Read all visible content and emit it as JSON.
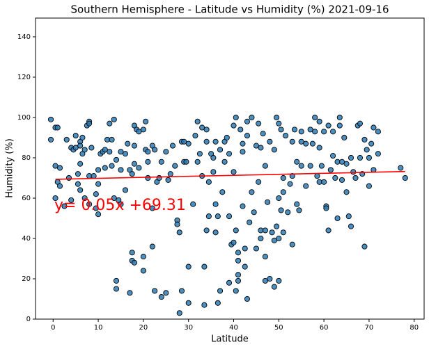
{
  "chart_data": {
    "type": "scatter",
    "title": "Southern Hemisphere - Latitude vs Humidity (%) 2021-09-16",
    "x_label": "Latitude",
    "y_label": "Humidity (%)",
    "xlim": [
      -3.9,
      82.2
    ],
    "ylim": [
      0,
      149.3
    ],
    "xticks": [
      0,
      10,
      20,
      30,
      40,
      50,
      60,
      70,
      80
    ],
    "yticks": [
      0,
      20,
      40,
      60,
      80,
      100,
      120,
      140
    ],
    "color": "#2b7bb5",
    "x": [
      -0.5,
      -0.5,
      0.5,
      1,
      0.5,
      1.5,
      0.5,
      1,
      1.5,
      2.5,
      3,
      3.5,
      4,
      4,
      4.5,
      5,
      5,
      5.5,
      5.5,
      6,
      6,
      6,
      6,
      6.5,
      6.5,
      7,
      7,
      7.5,
      8,
      8,
      8,
      8,
      8.5,
      9,
      9.5,
      9.5,
      10,
      10,
      10,
      10.5,
      11,
      11.5,
      11.5,
      12,
      12.5,
      12.5,
      13,
      13,
      13.5,
      13.5,
      14,
      14,
      14,
      14.5,
      15,
      15,
      15,
      16,
      16,
      16.5,
      17,
      17,
      17.5,
      17.5,
      17.5,
      18,
      18,
      18,
      18,
      18.5,
      19,
      19,
      20,
      20,
      20,
      20.5,
      20.5,
      21,
      21,
      21,
      22,
      22,
      22,
      22.5,
      22.5,
      23,
      23.5,
      24,
      24,
      25,
      25,
      25.5,
      26,
      26.5,
      27,
      27.5,
      27.5,
      28,
      28,
      28.5,
      28.5,
      29,
      29,
      29.5,
      30,
      30,
      30,
      31,
      31.5,
      32,
      32,
      32.5,
      33,
      33,
      33.5,
      33.5,
      34,
      34,
      34,
      34.5,
      34.5,
      35,
      35.5,
      35.5,
      36,
      36,
      36,
      36.5,
      36.5,
      37,
      37,
      37.5,
      38,
      38,
      38.5,
      39,
      39,
      39,
      39.5,
      40,
      40,
      40,
      40.5,
      40.5,
      40.5,
      41,
      41,
      41,
      41,
      41.5,
      42,
      42,
      42,
      42.5,
      42.5,
      43,
      43,
      43,
      43.5,
      44,
      44,
      44.5,
      45,
      45,
      45.5,
      45.5,
      46,
      46,
      46,
      46.5,
      47,
      47,
      47,
      47,
      47.5,
      48,
      48,
      48.5,
      49,
      49,
      49,
      49.5,
      49.5,
      50,
      50,
      50,
      50,
      50.5,
      50.5,
      51,
      51,
      51,
      51.5,
      52,
      52.5,
      53,
      53,
      53,
      53.5,
      54,
      54,
      54.5,
      55,
      55,
      55,
      56,
      56,
      57,
      57,
      57.5,
      58,
      58,
      58.5,
      59,
      59,
      59,
      59.5,
      60,
      60,
      60.5,
      60.5,
      61,
      61,
      61.5,
      62,
      62,
      62.5,
      63,
      63,
      63.5,
      63.5,
      64,
      64,
      64.5,
      65,
      65,
      65.5,
      66,
      66,
      66.5,
      67,
      67.5,
      68,
      68,
      68.5,
      69,
      69,
      69.5,
      70,
      70,
      70.5,
      71,
      71,
      72,
      72,
      77,
      78
    ],
    "values": [
      99,
      89,
      95,
      95,
      76,
      75,
      60,
      68,
      66,
      56,
      89,
      70,
      59,
      85,
      84,
      91,
      85,
      72,
      67,
      88,
      86,
      77,
      64,
      90,
      82,
      84,
      60,
      96,
      98,
      97,
      71,
      57,
      85,
      71,
      62,
      55,
      52,
      74,
      67,
      82,
      83,
      75,
      84,
      89,
      97,
      83,
      89,
      76,
      99,
      60,
      19,
      15,
      79,
      59,
      83,
      74,
      57,
      82,
      64,
      87,
      74,
      13,
      72,
      33,
      29,
      96,
      86,
      77,
      28,
      94,
      93,
      75,
      94,
      31,
      24,
      98,
      84,
      83,
      78,
      70,
      86,
      36,
      55,
      84,
      14,
      68,
      70,
      11,
      78,
      13,
      83,
      69,
      72,
      86,
      76,
      49,
      47,
      3,
      43,
      88,
      14,
      88,
      78,
      78,
      87,
      26,
      8,
      57,
      91,
      98,
      78,
      82,
      95,
      71,
      26,
      7,
      94,
      88,
      44,
      51,
      68,
      82,
      80,
      73,
      88,
      57,
      43,
      51,
      8,
      14,
      84,
      63,
      88,
      78,
      90,
      82,
      18,
      51,
      37,
      38,
      73,
      96,
      100,
      44,
      14,
      29,
      19,
      22,
      33,
      94,
      83,
      56,
      87,
      35,
      26,
      98,
      10,
      91,
      48,
      100,
      63,
      53,
      35,
      86,
      97,
      68,
      40,
      44,
      85,
      92,
      44,
      31,
      19,
      76,
      58,
      88,
      20,
      43,
      16,
      39,
      84,
      46,
      100,
      97,
      40,
      60,
      19,
      94,
      54,
      63,
      43,
      70,
      91,
      53,
      67,
      88,
      71,
      37,
      94,
      78,
      57,
      54,
      93,
      88,
      76,
      66,
      87,
      94,
      76,
      87,
      100,
      93,
      71,
      98,
      85,
      68,
      76,
      93,
      68,
      56,
      55,
      44,
      96,
      74,
      81,
      93,
      70,
      50,
      78,
      100,
      96,
      69,
      78,
      90,
      63,
      77,
      51,
      80,
      46,
      73,
      70,
      96,
      97,
      80,
      72,
      36,
      89,
      84,
      66,
      80,
      87,
      74,
      95,
      93,
      82,
      75,
      70
    ],
    "line": {
      "x": [
        0.5,
        78
      ],
      "values": [
        69.34,
        73.21
      ],
      "color": "#ff0000"
    },
    "annotation": {
      "text": "y= 0.05x +69.31",
      "color": "#ff0000"
    }
  }
}
